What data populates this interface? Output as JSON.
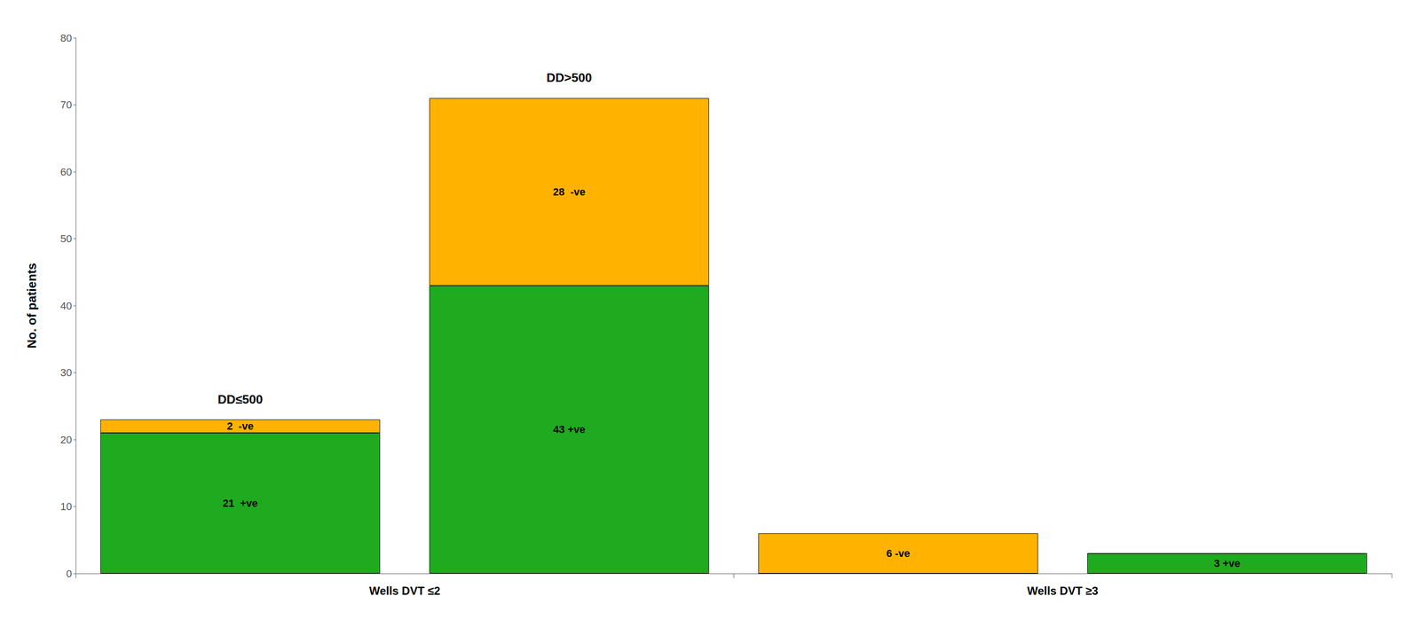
{
  "chart_data": {
    "type": "bar",
    "stacked": true,
    "ylabel": "No. of patients",
    "categories": [
      null,
      null,
      null,
      null
    ],
    "groups": [
      "Wells DVT ≤2",
      "Wells DVT ≥3"
    ],
    "series": [
      {
        "color": "#1faa1f",
        "values": [
          21,
          43,
          0,
          3
        ],
        "value_labels": [
          "21  +ve",
          "43 +ve",
          null,
          "3 +ve"
        ]
      },
      {
        "color": "#ffb300",
        "values": [
          2,
          28,
          6,
          0
        ],
        "value_labels": [
          "2  -ve",
          "28  -ve",
          "6 -ve",
          null
        ]
      }
    ],
    "annotations": [
      "DD≤500",
      "DD>500"
    ],
    "ylim": [
      0,
      80
    ],
    "yticks": [
      0,
      10,
      20,
      30,
      40,
      50,
      60,
      70,
      80
    ],
    "grid": false,
    "data_labels": true
  }
}
